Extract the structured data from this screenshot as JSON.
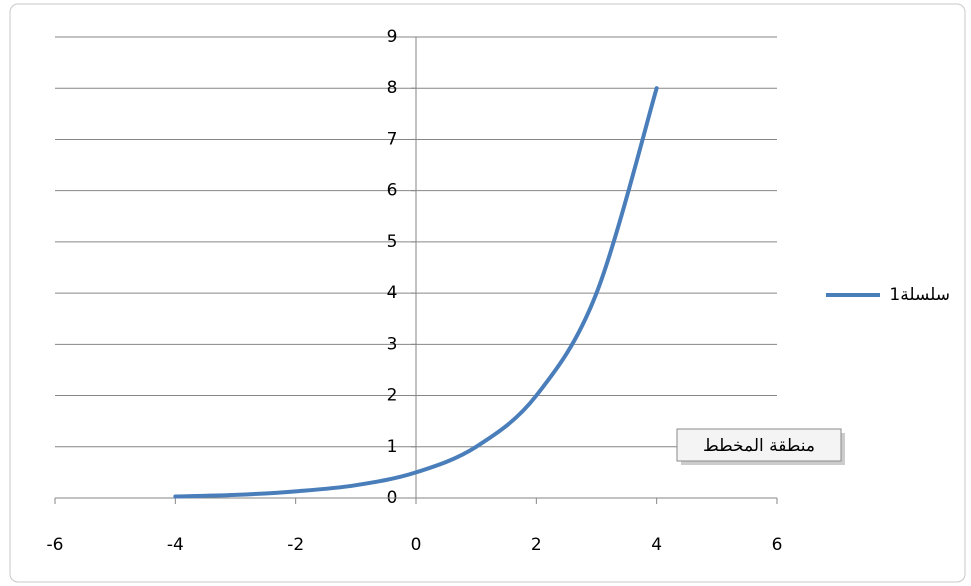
{
  "chart_data": {
    "type": "line",
    "x": [
      -4,
      -3,
      -2,
      -1,
      0,
      1,
      2,
      3,
      4
    ],
    "series": [
      {
        "name": "سلسلة1",
        "color": "#4a7ebb",
        "values": [
          0.03,
          0.06,
          0.13,
          0.25,
          0.5,
          1,
          2,
          4,
          8
        ]
      }
    ],
    "xlim": [
      -6,
      6
    ],
    "xticks": [
      -6,
      -4,
      -2,
      0,
      2,
      4,
      6
    ],
    "ylim": [
      0,
      9
    ],
    "yticks": [
      0,
      1,
      2,
      3,
      4,
      5,
      6,
      7,
      8,
      9
    ],
    "grid": true,
    "smooth": true,
    "legend": "right",
    "tooltip": "منطقة المخطط"
  }
}
